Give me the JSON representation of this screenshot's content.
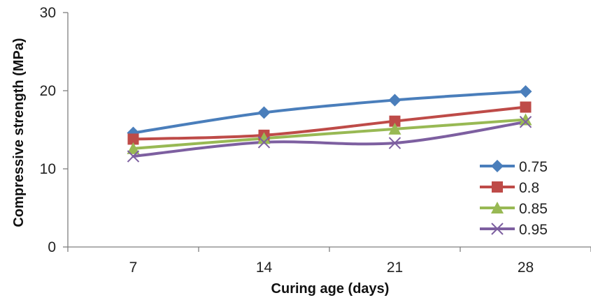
{
  "chart_data": {
    "type": "line",
    "title": "",
    "xlabel": "Curing age (days)",
    "ylabel": "Compressive strength (MPa)",
    "categories": [
      "7",
      "14",
      "21",
      "28"
    ],
    "ylim": [
      0,
      30
    ],
    "yticks": [
      "0",
      "10",
      "20",
      "30"
    ],
    "grid": false,
    "legend_position": "right",
    "smooth": true,
    "series": [
      {
        "name": "0.75",
        "values": [
          14.6,
          17.2,
          18.8,
          19.9
        ],
        "color": "#4a7ebb",
        "marker": "diamond"
      },
      {
        "name": "0.8",
        "values": [
          13.8,
          14.3,
          16.1,
          17.9
        ],
        "color": "#be4b48",
        "marker": "square"
      },
      {
        "name": "0.85",
        "values": [
          12.6,
          13.9,
          15.1,
          16.3
        ],
        "color": "#98b954",
        "marker": "triangle"
      },
      {
        "name": "0.95",
        "values": [
          11.6,
          13.4,
          13.3,
          16.0
        ],
        "color": "#7d5fa0",
        "marker": "x"
      }
    ]
  }
}
